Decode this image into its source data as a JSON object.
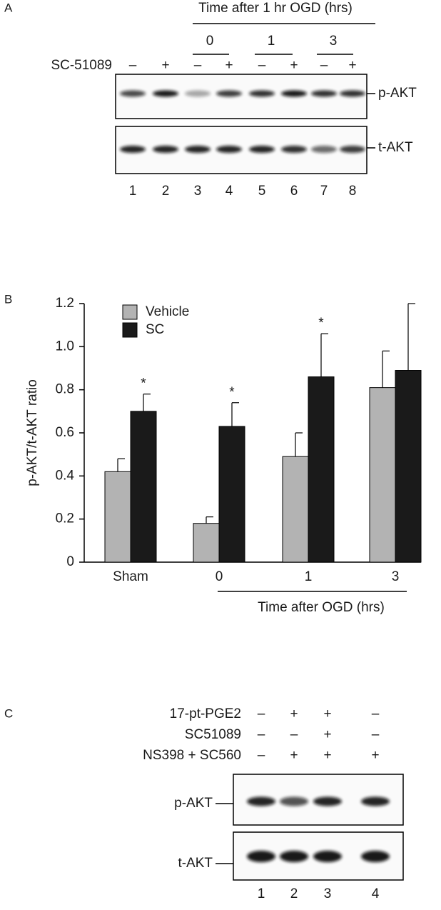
{
  "panel_a": {
    "label": "A",
    "time_header": "Time after 1 hr OGD (hrs)",
    "time_groups": [
      "0",
      "1",
      "3"
    ],
    "treatment": "SC-51089",
    "signs": [
      "–",
      "+",
      "–",
      "+",
      "–",
      "+",
      "–",
      "+"
    ],
    "blots": [
      "p-AKT",
      "t-AKT"
    ],
    "lanes": [
      "1",
      "2",
      "3",
      "4",
      "5",
      "6",
      "7",
      "8"
    ]
  },
  "chart_data": {
    "type": "bar",
    "panel_label": "B",
    "y_label": "p-AKT/t-AKT ratio",
    "x_group_label": "Time after OGD (hrs)",
    "categories": [
      "Sham",
      "0",
      "1",
      "3"
    ],
    "series": [
      {
        "name": "Vehicle",
        "color": "#b3b3b3",
        "values": [
          0.42,
          0.18,
          0.49,
          0.81
        ],
        "errors": [
          0.06,
          0.03,
          0.11,
          0.17
        ],
        "annotations": [
          null,
          null,
          null,
          null
        ]
      },
      {
        "name": "SC",
        "color": "#1a1a1a",
        "values": [
          0.7,
          0.63,
          0.86,
          0.89
        ],
        "errors": [
          0.08,
          0.11,
          0.2,
          0.31
        ],
        "annotations": [
          "*",
          "*",
          "*",
          null
        ]
      }
    ],
    "ylim": [
      0,
      1.2
    ],
    "yticks": [
      0,
      0.2,
      0.4,
      0.6,
      0.8,
      {
        "value": 1,
        "label": "1.0"
      },
      1.2
    ],
    "grid": false,
    "legend": "top-left"
  },
  "panel_c": {
    "label": "C",
    "treatments": [
      {
        "name": "17-pt-PGE2",
        "signs": [
          "–",
          "+",
          "+",
          "–"
        ]
      },
      {
        "name": "SC51089",
        "signs": [
          "–",
          "–",
          "+",
          "–"
        ]
      },
      {
        "name": "NS398 + SC560",
        "signs": [
          "–",
          "+",
          "+",
          "+"
        ]
      }
    ],
    "blots": [
      "p-AKT",
      "t-AKT"
    ],
    "lanes": [
      "1",
      "2",
      "3",
      "4"
    ]
  }
}
